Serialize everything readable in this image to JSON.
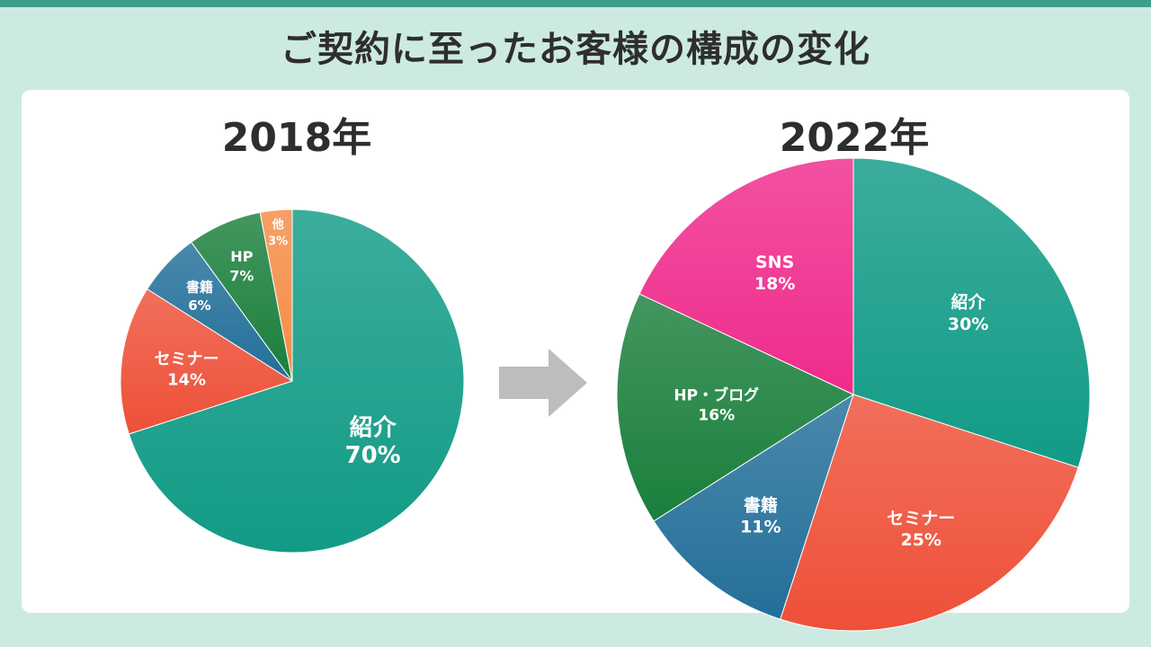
{
  "title": "ご契約に至ったお客様の構成の変化",
  "colors": {
    "background": "#cdeae2",
    "accent_strip": "#3f9e8a",
    "panel": "#ffffff",
    "arrow": "#bdbdbd"
  },
  "arrow_icon": "right-arrow-icon",
  "chart_data": [
    {
      "type": "pie",
      "title": "2018年",
      "start_angle_deg": 0,
      "direction": "clockwise",
      "slices": [
        {
          "label": "紹介",
          "value": 70,
          "value_label": "70%",
          "color": "#119b86"
        },
        {
          "label": "セミナー",
          "value": 14,
          "value_label": "14%",
          "color": "#ee5038"
        },
        {
          "label": "書籍",
          "value": 6,
          "value_label": "6%",
          "color": "#236f99"
        },
        {
          "label": "HP",
          "value": 7,
          "value_label": "7%",
          "color": "#1a7f3c"
        },
        {
          "label": "他",
          "value": 3,
          "value_label": "3%",
          "color": "#f48c45"
        }
      ]
    },
    {
      "type": "pie",
      "title": "2022年",
      "start_angle_deg": 0,
      "direction": "clockwise",
      "slices": [
        {
          "label": "紹介",
          "value": 30,
          "value_label": "30%",
          "color": "#119b86"
        },
        {
          "label": "セミナー",
          "value": 25,
          "value_label": "25%",
          "color": "#ee5038"
        },
        {
          "label": "書籍",
          "value": 11,
          "value_label": "11%",
          "color": "#236f99"
        },
        {
          "label": "HP・ブログ",
          "value": 16,
          "value_label": "16%",
          "color": "#1a7f3c"
        },
        {
          "label": "SNS",
          "value": 18,
          "value_label": "18%",
          "color": "#ef2b8c"
        }
      ]
    }
  ]
}
